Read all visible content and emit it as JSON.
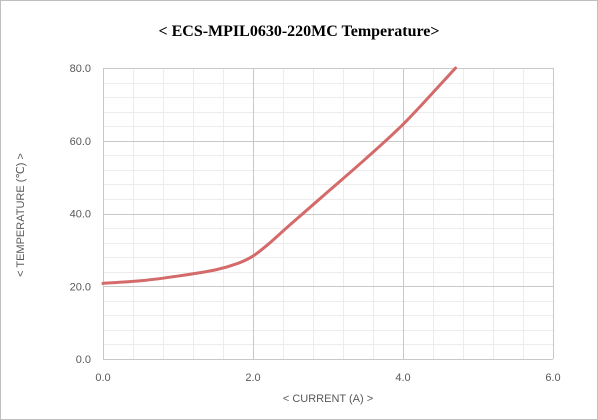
{
  "chart_data": {
    "type": "line",
    "title": "< ECS-MPIL0630-220MC Temperature>",
    "xlabel": "< CURRENT (A) >",
    "ylabel": "< TEMPERATURE (℃) >",
    "xlim": [
      0,
      6
    ],
    "ylim": [
      0,
      80
    ],
    "x_major_ticks": [
      0,
      2,
      4,
      6
    ],
    "x_tick_labels": [
      "0.0",
      "2.0",
      "4.0",
      "6.0"
    ],
    "y_major_ticks": [
      0,
      20,
      40,
      60,
      80
    ],
    "y_tick_labels": [
      "0.0",
      "20.0",
      "40.0",
      "60.0",
      "80.0"
    ],
    "x_minor_step": 0.4,
    "y_minor_step": 4,
    "grid": true,
    "series": [
      {
        "color": "#d46a6a",
        "x": [
          0,
          0.5,
          1.0,
          1.5,
          1.8,
          2.0,
          2.2,
          2.5,
          3.0,
          3.5,
          4.0,
          4.5,
          4.7
        ],
        "y": [
          20.8,
          21.5,
          22.8,
          24.5,
          26.3,
          28.3,
          31.5,
          37.0,
          46.0,
          55.0,
          64.5,
          75.5,
          80.0
        ]
      }
    ]
  }
}
